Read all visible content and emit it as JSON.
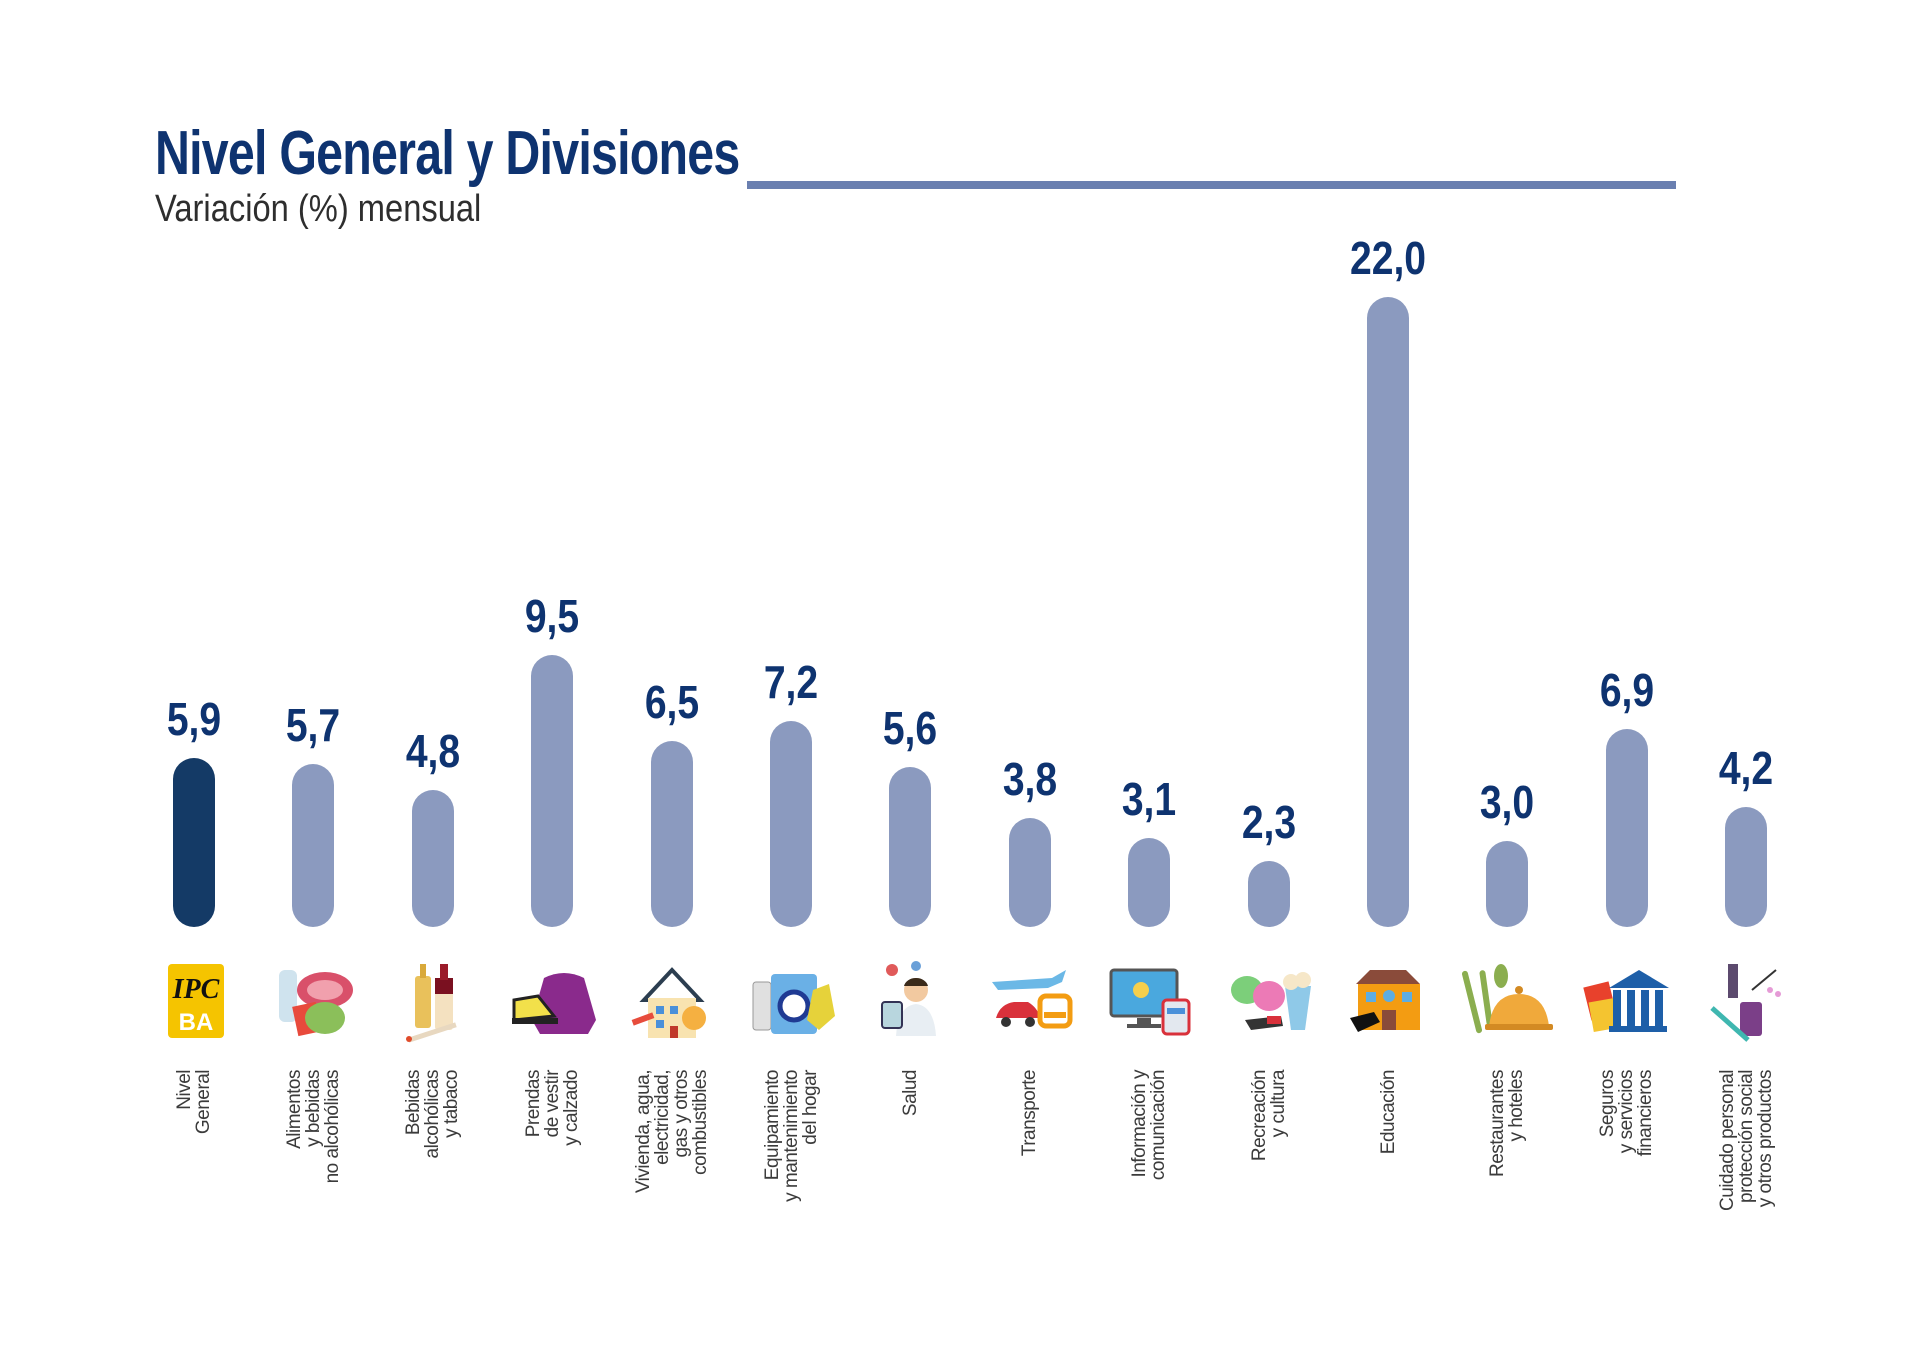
{
  "header": {
    "title": "Nivel General y Divisiones",
    "subtitle": "Variación (%) mensual"
  },
  "colors": {
    "bar": "#8b9abf",
    "bar_highlight": "#143a66",
    "label": "#0e3370",
    "rule": "#6a7fb0"
  },
  "chart_data": {
    "type": "bar",
    "title": "Nivel General y Divisiones",
    "subtitle": "Variación (%) mensual",
    "xlabel": "",
    "ylabel": "Variación (%) mensual",
    "ylim": [
      0,
      22
    ],
    "grid": false,
    "legend": "none",
    "categories": [
      "Nivel General",
      "Alimentos y bebidas no alcohólicas",
      "Bebidas alcohólicas y tabaco",
      "Prendas de vestir y calzado",
      "Vivienda, agua, electricidad, gas y otros combustibles",
      "Equipamiento y mantenimiento del hogar",
      "Salud",
      "Transporte",
      "Información y comunicación",
      "Recreación y cultura",
      "Educación",
      "Restaurantes y hoteles",
      "Seguros y servicios financieros",
      "Cuidado personal, protección social y otros productos"
    ],
    "category_lines": [
      "Nivel\nGeneral",
      "Alimentos\ny bebidas\nno alcohólicas",
      "Bebidas\nalcohólicas\ny tabaco",
      "Prendas\nde vestir\ny calzado",
      "Vivienda, agua,\nelectricidad,\ngas y otros\ncombustibles",
      "Equipamiento\ny mantenimiento\ndel hogar",
      "Salud",
      "Transporte",
      "Información y\ncomunicación",
      "Recreación\ny cultura",
      "Educación",
      "Restaurantes\ny hoteles",
      "Seguros\ny servicios\nfinancieros",
      "Cuidado personal\nprotección social\ny otros productos"
    ],
    "values": [
      5.9,
      5.7,
      4.8,
      9.5,
      6.5,
      7.2,
      5.6,
      3.8,
      3.1,
      2.3,
      22.0,
      3.0,
      6.9,
      4.2
    ],
    "value_labels": [
      "5,9",
      "5,7",
      "4,8",
      "9,5",
      "6,5",
      "7,2",
      "5,6",
      "3,8",
      "3,1",
      "2,3",
      "22,0",
      "3,0",
      "6,9",
      "4,2"
    ],
    "highlight_index": 0,
    "icons": [
      "ipc-ba-logo-icon",
      "food-groceries-icon",
      "alcohol-tobacco-icon",
      "clothing-shoe-icon",
      "housing-utilities-icon",
      "household-appliances-icon",
      "health-doctor-icon",
      "transport-vehicles-icon",
      "computer-phone-icon",
      "theater-masks-popcorn-icon",
      "school-building-icon",
      "restaurant-cloche-icon",
      "bank-cards-icon",
      "personal-care-icon"
    ]
  }
}
